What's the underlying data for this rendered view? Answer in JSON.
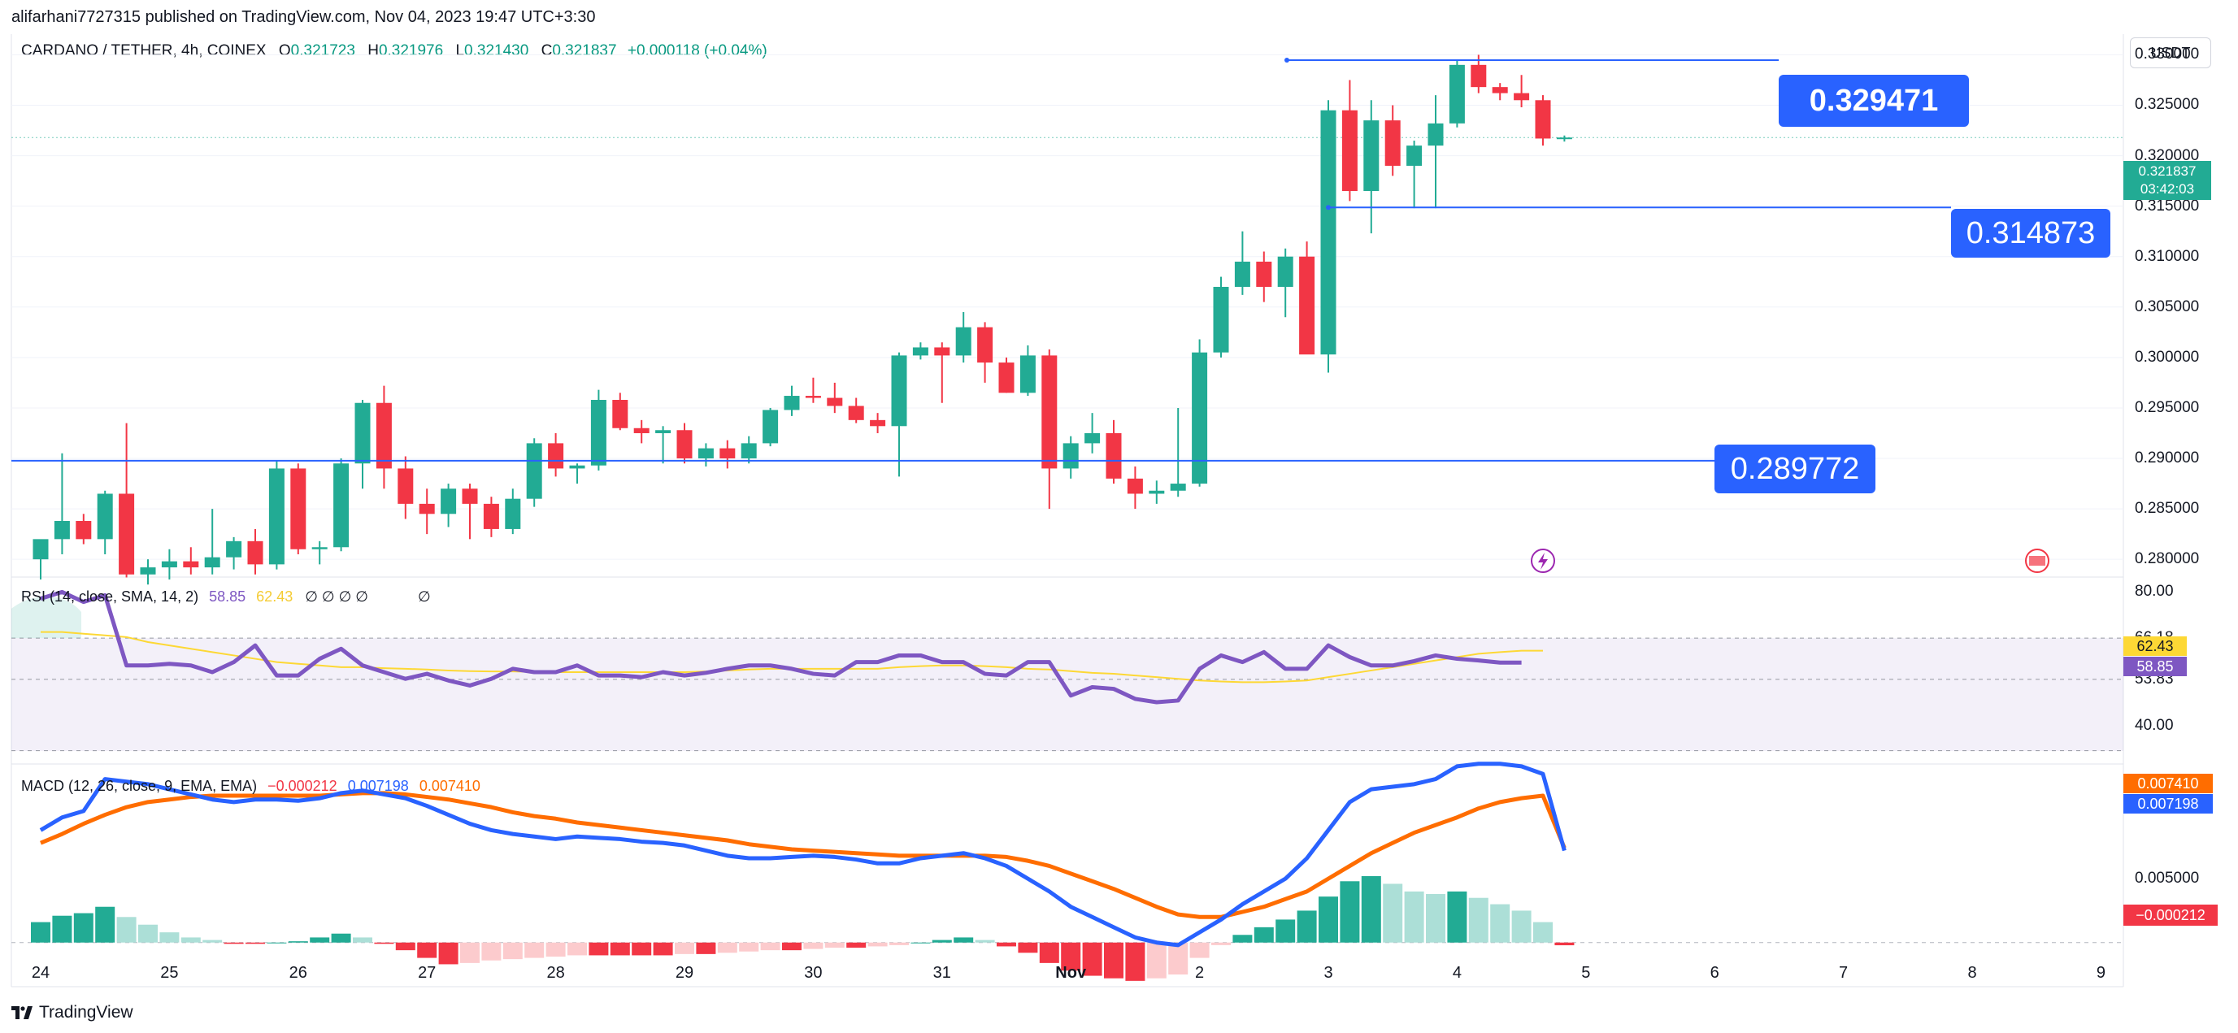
{
  "header": {
    "published": "alifarhani7727315 published on TradingView.com, Nov 04, 2023 19:47 UTC+3:30",
    "currency": "USDT"
  },
  "legend": {
    "symbol": "CARDANO / TETHER, 4h, COINEX",
    "o_key": "O",
    "o": "0.321723",
    "h_key": "H",
    "h": "0.321976",
    "l_key": "L",
    "l": "0.321430",
    "c_key": "C",
    "c": "0.321837",
    "change": "+0.000118 (+0.04%)"
  },
  "rsi": {
    "title": "RSI (14, close, SMA, 14, 2)",
    "rsi_value": "58.85",
    "sma_value": "62.43",
    "symbols": "∅ ∅ ∅ ∅",
    "extra_symbol": "∅",
    "axis_labels": [
      "80.00",
      "66.18",
      "53.83",
      "40.00"
    ],
    "badge_sma": "62.43",
    "badge_rsi": "58.85"
  },
  "macd": {
    "title": "MACD (12, 26, close, 9, EMA, EMA)",
    "hist_value": "−0.000212",
    "macd_value": "0.007198",
    "signal_value": "0.007410",
    "axis_labels": [
      "0.005000"
    ],
    "badge_signal": "0.007410",
    "badge_macd": "0.007198",
    "badge_hist": "−0.000212"
  },
  "price_tags": {
    "high": "0.329471",
    "mid": "0.314873",
    "low": "0.289772"
  },
  "price_axis": {
    "labels": [
      "0.330000",
      "0.325000",
      "0.320000",
      "0.315000",
      "0.310000",
      "0.305000",
      "0.300000",
      "0.295000",
      "0.290000",
      "0.285000",
      "0.280000"
    ],
    "last_price": "0.321837",
    "countdown": "03:42:03"
  },
  "date_axis": {
    "labels": [
      "24",
      "25",
      "26",
      "27",
      "28",
      "29",
      "30",
      "31",
      "Nov",
      "2",
      "3",
      "4",
      "5",
      "6",
      "7",
      "8",
      "9"
    ]
  },
  "brand": "TradingView",
  "colors": {
    "up": "#22ab94",
    "down": "#f23645",
    "rsi_line": "#7e57c2",
    "rsi_sma": "#fdd835",
    "macd_line": "#2962ff",
    "signal_line": "#ff6d00",
    "tag_blue": "#2962ff"
  },
  "chart_data": [
    {
      "type": "candlestick",
      "title": "CARDANO / TETHER, 4h, COINEX",
      "ylim": [
        0.278,
        0.331
      ],
      "interval": "4h",
      "candles": [
        {
          "o": 0.28,
          "h": 0.2818,
          "l": 0.278,
          "c": 0.282
        },
        {
          "o": 0.282,
          "h": 0.2905,
          "l": 0.2805,
          "c": 0.2838
        },
        {
          "o": 0.2838,
          "h": 0.2845,
          "l": 0.2815,
          "c": 0.282
        },
        {
          "o": 0.282,
          "h": 0.2868,
          "l": 0.2805,
          "c": 0.2865
        },
        {
          "o": 0.2865,
          "h": 0.2935,
          "l": 0.2782,
          "c": 0.2785
        },
        {
          "o": 0.2785,
          "h": 0.28,
          "l": 0.2775,
          "c": 0.2792
        },
        {
          "o": 0.2792,
          "h": 0.281,
          "l": 0.278,
          "c": 0.2798
        },
        {
          "o": 0.2798,
          "h": 0.2812,
          "l": 0.2785,
          "c": 0.2792
        },
        {
          "o": 0.2792,
          "h": 0.285,
          "l": 0.2785,
          "c": 0.2802
        },
        {
          "o": 0.2802,
          "h": 0.2822,
          "l": 0.279,
          "c": 0.2818
        },
        {
          "o": 0.2818,
          "h": 0.283,
          "l": 0.2785,
          "c": 0.2795
        },
        {
          "o": 0.2795,
          "h": 0.2898,
          "l": 0.279,
          "c": 0.289
        },
        {
          "o": 0.289,
          "h": 0.2895,
          "l": 0.2805,
          "c": 0.281
        },
        {
          "o": 0.281,
          "h": 0.2818,
          "l": 0.2795,
          "c": 0.2812
        },
        {
          "o": 0.2812,
          "h": 0.29,
          "l": 0.2808,
          "c": 0.2895
        },
        {
          "o": 0.2895,
          "h": 0.2958,
          "l": 0.287,
          "c": 0.2955
        },
        {
          "o": 0.2955,
          "h": 0.2972,
          "l": 0.287,
          "c": 0.289
        },
        {
          "o": 0.289,
          "h": 0.2902,
          "l": 0.284,
          "c": 0.2855
        },
        {
          "o": 0.2855,
          "h": 0.287,
          "l": 0.2825,
          "c": 0.2845
        },
        {
          "o": 0.2845,
          "h": 0.2875,
          "l": 0.2832,
          "c": 0.287
        },
        {
          "o": 0.287,
          "h": 0.2875,
          "l": 0.282,
          "c": 0.2855
        },
        {
          "o": 0.2855,
          "h": 0.2862,
          "l": 0.2822,
          "c": 0.283
        },
        {
          "o": 0.283,
          "h": 0.287,
          "l": 0.2825,
          "c": 0.286
        },
        {
          "o": 0.286,
          "h": 0.292,
          "l": 0.2852,
          "c": 0.2915
        },
        {
          "o": 0.2915,
          "h": 0.2925,
          "l": 0.2882,
          "c": 0.289
        },
        {
          "o": 0.289,
          "h": 0.2895,
          "l": 0.2875,
          "c": 0.2893
        },
        {
          "o": 0.2893,
          "h": 0.2968,
          "l": 0.2888,
          "c": 0.2958
        },
        {
          "o": 0.2958,
          "h": 0.2965,
          "l": 0.2928,
          "c": 0.293
        },
        {
          "o": 0.293,
          "h": 0.2938,
          "l": 0.2915,
          "c": 0.2925
        },
        {
          "o": 0.2925,
          "h": 0.2932,
          "l": 0.2895,
          "c": 0.2928
        },
        {
          "o": 0.2928,
          "h": 0.2935,
          "l": 0.2895,
          "c": 0.29
        },
        {
          "o": 0.29,
          "h": 0.2915,
          "l": 0.2892,
          "c": 0.291
        },
        {
          "o": 0.291,
          "h": 0.2918,
          "l": 0.289,
          "c": 0.29
        },
        {
          "o": 0.29,
          "h": 0.2922,
          "l": 0.2895,
          "c": 0.2915
        },
        {
          "o": 0.2915,
          "h": 0.295,
          "l": 0.2912,
          "c": 0.2948
        },
        {
          "o": 0.2948,
          "h": 0.2972,
          "l": 0.2942,
          "c": 0.2962
        },
        {
          "o": 0.2962,
          "h": 0.298,
          "l": 0.2955,
          "c": 0.296
        },
        {
          "o": 0.296,
          "h": 0.2975,
          "l": 0.2945,
          "c": 0.2952
        },
        {
          "o": 0.2952,
          "h": 0.296,
          "l": 0.2935,
          "c": 0.2938
        },
        {
          "o": 0.2938,
          "h": 0.2945,
          "l": 0.2925,
          "c": 0.2932
        },
        {
          "o": 0.2932,
          "h": 0.3005,
          "l": 0.2882,
          "c": 0.3002
        },
        {
          "o": 0.3002,
          "h": 0.3015,
          "l": 0.2998,
          "c": 0.301
        },
        {
          "o": 0.301,
          "h": 0.3015,
          "l": 0.2955,
          "c": 0.3002
        },
        {
          "o": 0.3002,
          "h": 0.3045,
          "l": 0.2995,
          "c": 0.303
        },
        {
          "o": 0.303,
          "h": 0.3035,
          "l": 0.2975,
          "c": 0.2995
        },
        {
          "o": 0.2995,
          "h": 0.3,
          "l": 0.2965,
          "c": 0.2965
        },
        {
          "o": 0.2965,
          "h": 0.3012,
          "l": 0.2962,
          "c": 0.3002
        },
        {
          "o": 0.3002,
          "h": 0.3008,
          "l": 0.285,
          "c": 0.289
        },
        {
          "o": 0.289,
          "h": 0.2922,
          "l": 0.288,
          "c": 0.2915
        },
        {
          "o": 0.2915,
          "h": 0.2945,
          "l": 0.2905,
          "c": 0.2925
        },
        {
          "o": 0.2925,
          "h": 0.2938,
          "l": 0.2875,
          "c": 0.288
        },
        {
          "o": 0.288,
          "h": 0.2892,
          "l": 0.285,
          "c": 0.2865
        },
        {
          "o": 0.2865,
          "h": 0.2878,
          "l": 0.2855,
          "c": 0.2868
        },
        {
          "o": 0.2868,
          "h": 0.295,
          "l": 0.2862,
          "c": 0.2875
        },
        {
          "o": 0.2875,
          "h": 0.3018,
          "l": 0.2872,
          "c": 0.3005
        },
        {
          "o": 0.3005,
          "h": 0.308,
          "l": 0.3,
          "c": 0.307
        },
        {
          "o": 0.307,
          "h": 0.3125,
          "l": 0.3062,
          "c": 0.3095
        },
        {
          "o": 0.3095,
          "h": 0.3105,
          "l": 0.3055,
          "c": 0.307
        },
        {
          "o": 0.307,
          "h": 0.3108,
          "l": 0.304,
          "c": 0.31
        },
        {
          "o": 0.31,
          "h": 0.3115,
          "l": 0.3005,
          "c": 0.3003
        },
        {
          "o": 0.3003,
          "h": 0.3255,
          "l": 0.2985,
          "c": 0.3245
        },
        {
          "o": 0.3245,
          "h": 0.3275,
          "l": 0.3155,
          "c": 0.3165
        },
        {
          "o": 0.3165,
          "h": 0.3255,
          "l": 0.3123,
          "c": 0.3235
        },
        {
          "o": 0.3235,
          "h": 0.325,
          "l": 0.318,
          "c": 0.319
        },
        {
          "o": 0.319,
          "h": 0.3215,
          "l": 0.3148,
          "c": 0.321
        },
        {
          "o": 0.321,
          "h": 0.326,
          "l": 0.3148,
          "c": 0.3232
        },
        {
          "o": 0.3232,
          "h": 0.3295,
          "l": 0.3228,
          "c": 0.329
        },
        {
          "o": 0.329,
          "h": 0.33,
          "l": 0.3262,
          "c": 0.3268
        },
        {
          "o": 0.3268,
          "h": 0.3272,
          "l": 0.3255,
          "c": 0.3262
        },
        {
          "o": 0.3262,
          "h": 0.328,
          "l": 0.3248,
          "c": 0.3255
        },
        {
          "o": 0.3255,
          "h": 0.326,
          "l": 0.321,
          "c": 0.3217
        },
        {
          "o": 0.3217,
          "h": 0.322,
          "l": 0.3214,
          "c": 0.3218
        }
      ],
      "levels": [
        0.329471,
        0.314873,
        0.289772
      ]
    },
    {
      "type": "line",
      "title": "RSI (14, close, SMA, 14, 2)",
      "ylim": [
        29,
        83
      ],
      "bands": [
        66.18,
        53.83
      ],
      "series": [
        {
          "name": "RSI",
          "values": [
            78,
            80,
            77,
            79,
            58,
            58,
            58.5,
            58,
            56,
            59,
            64,
            55,
            55,
            60,
            63,
            58,
            56,
            54,
            55.5,
            53.5,
            52,
            54,
            57,
            56,
            56,
            58,
            55,
            55,
            54.5,
            56,
            55,
            55.8,
            57,
            58,
            58,
            57,
            55.5,
            55,
            59,
            59,
            61,
            61,
            59,
            59,
            55.5,
            55,
            59,
            59,
            49,
            51.5,
            51,
            48,
            47,
            47.5,
            57,
            61,
            59,
            62,
            57,
            57,
            64,
            60.5,
            58,
            58,
            59.3,
            61,
            60,
            59.5,
            58.85,
            58.85
          ]
        },
        {
          "name": "SMA",
          "values": [
            68,
            68,
            67.5,
            67,
            66.5,
            65,
            64,
            63,
            62,
            61,
            60,
            59,
            58.5,
            58,
            57.5,
            57.5,
            57.2,
            57,
            56.8,
            56.5,
            56.3,
            56.2,
            56.2,
            56.1,
            56,
            56,
            56,
            56,
            56,
            56,
            56,
            56.2,
            56.5,
            56.8,
            57,
            57,
            57,
            57,
            57,
            57,
            57.5,
            57.8,
            58,
            58,
            57.8,
            57.5,
            57,
            56.8,
            56.3,
            55.8,
            55.5,
            55,
            54.5,
            54,
            53.5,
            53.2,
            53,
            53,
            53.2,
            53.5,
            54.5,
            55.5,
            56.5,
            57.5,
            58.5,
            59.5,
            60.5,
            61.5,
            62,
            62.43,
            62.43
          ]
        }
      ]
    },
    {
      "type": "line+bar",
      "title": "MACD (12, 26, close, 9, EMA, EMA)",
      "ylim": [
        -0.0032,
        0.0136
      ],
      "series": [
        {
          "name": "MACD",
          "values": [
            0.0088,
            0.0098,
            0.0103,
            0.0128,
            0.0126,
            0.0124,
            0.012,
            0.0116,
            0.0112,
            0.011,
            0.0112,
            0.0112,
            0.0111,
            0.0113,
            0.0117,
            0.0119,
            0.0116,
            0.0113,
            0.0107,
            0.01,
            0.0093,
            0.0088,
            0.0085,
            0.0083,
            0.0081,
            0.0083,
            0.0082,
            0.0081,
            0.0079,
            0.0078,
            0.0076,
            0.0072,
            0.0068,
            0.0066,
            0.0066,
            0.0067,
            0.0068,
            0.0067,
            0.0065,
            0.0062,
            0.0062,
            0.0066,
            0.0068,
            0.007,
            0.0066,
            0.006,
            0.005,
            0.004,
            0.0028,
            0.002,
            0.0012,
            0.0004,
            0.0,
            -0.0002,
            0.0008,
            0.0018,
            0.003,
            0.004,
            0.005,
            0.0066,
            0.0088,
            0.011,
            0.012,
            0.0122,
            0.0124,
            0.0128,
            0.0138,
            0.014,
            0.014,
            0.0138,
            0.0132,
            0.007198
          ]
        },
        {
          "name": "Signal",
          "values": [
            0.0078,
            0.0085,
            0.0093,
            0.01,
            0.0106,
            0.011,
            0.0112,
            0.0114,
            0.0115,
            0.0115,
            0.0115,
            0.0115,
            0.0115,
            0.0115,
            0.0116,
            0.0117,
            0.0117,
            0.0116,
            0.0114,
            0.0112,
            0.0109,
            0.0106,
            0.0102,
            0.0099,
            0.0097,
            0.0094,
            0.0092,
            0.009,
            0.0088,
            0.0086,
            0.0084,
            0.0082,
            0.008,
            0.0077,
            0.0075,
            0.0073,
            0.0072,
            0.0071,
            0.007,
            0.0069,
            0.0068,
            0.0068,
            0.0068,
            0.0068,
            0.0068,
            0.0067,
            0.0064,
            0.006,
            0.0054,
            0.0048,
            0.0042,
            0.0035,
            0.0028,
            0.0022,
            0.002,
            0.002,
            0.0024,
            0.0028,
            0.0034,
            0.004,
            0.005,
            0.006,
            0.007,
            0.0078,
            0.0086,
            0.0092,
            0.0098,
            0.0105,
            0.011,
            0.0113,
            0.0115,
            0.00741
          ]
        },
        {
          "name": "Histogram",
          "values": [
            0.0016,
            0.0021,
            0.0023,
            0.0028,
            0.002,
            0.0014,
            0.0008,
            0.0004,
            0.0002,
            -0.0001,
            -0.0001,
            0.0,
            0.0001,
            0.0004,
            0.0007,
            0.0004,
            -0.0001,
            -0.0006,
            -0.0012,
            -0.0017,
            -0.0016,
            -0.0014,
            -0.0013,
            -0.0012,
            -0.0011,
            -0.001,
            -0.001,
            -0.001,
            -0.001,
            -0.001,
            -0.0009,
            -0.0009,
            -0.0008,
            -0.0007,
            -0.0006,
            -0.0006,
            -0.0005,
            -0.0004,
            -0.0004,
            -0.0003,
            -0.0002,
            0.0,
            0.0002,
            0.0004,
            0.0002,
            -0.0003,
            -0.0008,
            -0.0016,
            -0.0022,
            -0.0026,
            -0.0028,
            -0.003,
            -0.0028,
            -0.0025,
            -0.0012,
            -0.0002,
            0.0006,
            0.0012,
            0.0018,
            0.0025,
            0.0036,
            0.0048,
            0.0052,
            0.0046,
            0.004,
            0.0038,
            0.004,
            0.0035,
            0.003,
            0.0025,
            0.0016,
            -0.000212
          ]
        }
      ]
    }
  ]
}
